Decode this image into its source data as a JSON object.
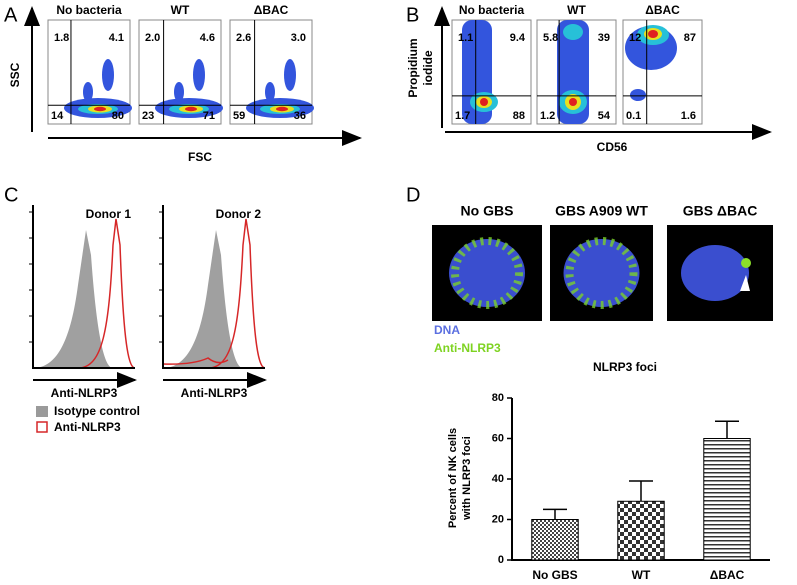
{
  "panel_a": {
    "letter": "A",
    "y_label": "SSC",
    "x_label": "FSC",
    "plots": [
      {
        "title": "No bacteria",
        "quadrants": [
          "1.8",
          "4.1",
          "14",
          "80"
        ]
      },
      {
        "title": "WT",
        "quadrants": [
          "2.0",
          "4.6",
          "23",
          "71"
        ]
      },
      {
        "title": "ΔBAC",
        "quadrants": [
          "2.6",
          "3.0",
          "59",
          "36"
        ]
      }
    ]
  },
  "panel_b": {
    "letter": "B",
    "y_label": [
      "Propidium",
      "iodide"
    ],
    "x_label": "CD56",
    "plots": [
      {
        "title": "No bacteria",
        "quadrants": [
          "1.1",
          "9.4",
          "1.7",
          "88"
        ]
      },
      {
        "title": "WT",
        "quadrants": [
          "5.8",
          "39",
          "1.2",
          "54"
        ]
      },
      {
        "title": "ΔBAC",
        "quadrants": [
          "12",
          "87",
          "0.1",
          "1.6"
        ]
      }
    ]
  },
  "panel_c": {
    "letter": "C",
    "plots": [
      {
        "title": "Donor 1",
        "x_label": "Anti-NLRP3"
      },
      {
        "title": "Donor 2",
        "x_label": "Anti-NLRP3"
      }
    ],
    "legend": [
      "Isotype control",
      "Anti-NLRP3"
    ]
  },
  "panel_d": {
    "letter": "D",
    "images": [
      "No GBS",
      "GBS A909 WT",
      "GBS ΔBAC"
    ],
    "stains": [
      "DNA",
      "Anti-NLRP3"
    ]
  },
  "chart_data": {
    "type": "bar",
    "title": "NLRP3 foci",
    "y_label": [
      "Percent of NK cells",
      "with NLRP3 foci"
    ],
    "categories": [
      "No GBS",
      "WT",
      "ΔBAC"
    ],
    "values": [
      20,
      29,
      60
    ],
    "errors": [
      5,
      10,
      8.5
    ],
    "ylim": [
      0,
      80
    ],
    "yticks": [
      0,
      20,
      40,
      60,
      80
    ]
  }
}
